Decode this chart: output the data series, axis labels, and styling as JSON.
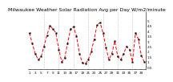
{
  "title": "Milwaukee Weather Solar Radiation Avg per Day W/m2/minute",
  "values": [
    3.8,
    2.8,
    1.8,
    1.2,
    1.5,
    2.5,
    3.6,
    4.5,
    4.2,
    3.8,
    2.2,
    1.0,
    1.4,
    2.8,
    4.2,
    4.4,
    3.5,
    1.8,
    0.9,
    0.8,
    1.2,
    2.0,
    3.2,
    4.6,
    4.8,
    3.8,
    2.4,
    1.2,
    1.8,
    3.0,
    1.5,
    1.2,
    1.8,
    2.5,
    2.2,
    1.0,
    3.8,
    3.2,
    1.6,
    1.0
  ],
  "line_color": "#ff0000",
  "marker_color": "#000000",
  "background_color": "#ffffff",
  "grid_color": "#999999",
  "ylim": [
    0.3,
    5.8
  ],
  "ytick_labels": [
    "5",
    "4.5",
    "4",
    "3.5",
    "3",
    "2.5",
    "2",
    "1.5",
    "1",
    "0.5"
  ],
  "ytick_values": [
    5.0,
    4.5,
    4.0,
    3.5,
    3.0,
    2.5,
    2.0,
    1.5,
    1.0,
    0.5
  ],
  "title_fontsize": 4.5,
  "tick_fontsize": 3.0,
  "n_grid_lines": 7
}
